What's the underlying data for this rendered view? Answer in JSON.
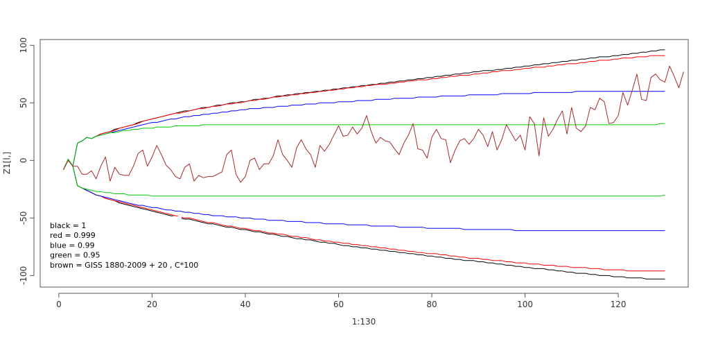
{
  "chart_data": {
    "type": "line",
    "title": "",
    "xlabel": "1:130",
    "ylabel": "Z1[l,]",
    "xlim": [
      -4,
      135
    ],
    "ylim": [
      -110,
      105
    ],
    "xticks": [
      0,
      20,
      40,
      60,
      80,
      100,
      120
    ],
    "yticks": [
      -100,
      -50,
      0,
      50,
      100
    ],
    "legend": {
      "placement": "bottom-left",
      "lines": [
        "black = 1",
        "red = 0.999",
        "blue = 0.99",
        "green = 0.95",
        "brown = GISS 1880-2009 + 20 , C*100"
      ]
    },
    "series": [
      {
        "color": "#000000",
        "role": "upper",
        "values": [
          -8,
          1,
          -5,
          15,
          17,
          20,
          19,
          21,
          23,
          24,
          25,
          27,
          28,
          29,
          30,
          31,
          33,
          34,
          35,
          36,
          37,
          38,
          39,
          40,
          41,
          42,
          43,
          43,
          44,
          45,
          46,
          46,
          47,
          48,
          48,
          49,
          50,
          50,
          51,
          51,
          52,
          53,
          53,
          54,
          54,
          55,
          56,
          56,
          57,
          57,
          58,
          58,
          59,
          59,
          60,
          60,
          61,
          61,
          62,
          62,
          63,
          63,
          64,
          64,
          65,
          65,
          66,
          66,
          67,
          67,
          68,
          68,
          69,
          69,
          70,
          70,
          71,
          71,
          72,
          72,
          73,
          73,
          74,
          74,
          75,
          75,
          76,
          76,
          77,
          77,
          78,
          78,
          78,
          79,
          79,
          80,
          80,
          81,
          81,
          82,
          82,
          83,
          83,
          84,
          84,
          85,
          85,
          86,
          86,
          87,
          87,
          88,
          88,
          89,
          89,
          90,
          90,
          90,
          91,
          91,
          92,
          92,
          93,
          93,
          94,
          94,
          95,
          95,
          96,
          96
        ]
      },
      {
        "color": "#000000",
        "role": "lower",
        "values": [
          -8,
          1,
          -5,
          -22,
          -24,
          -26,
          -28,
          -30,
          -31,
          -33,
          -34,
          -35,
          -37,
          -38,
          -39,
          -40,
          -41,
          -42,
          -43,
          -44,
          -45,
          -46,
          -47,
          -48,
          -49,
          -50,
          -51,
          -51,
          -52,
          -53,
          -54,
          -55,
          -55,
          -56,
          -57,
          -58,
          -58,
          -59,
          -60,
          -60,
          -61,
          -62,
          -62,
          -63,
          -64,
          -64,
          -65,
          -66,
          -66,
          -67,
          -68,
          -68,
          -69,
          -69,
          -70,
          -71,
          -71,
          -72,
          -72,
          -73,
          -74,
          -74,
          -75,
          -75,
          -76,
          -76,
          -77,
          -77,
          -78,
          -78,
          -79,
          -79,
          -80,
          -80,
          -81,
          -81,
          -82,
          -82,
          -83,
          -83,
          -84,
          -84,
          -85,
          -85,
          -86,
          -86,
          -87,
          -87,
          -87,
          -88,
          -88,
          -89,
          -89,
          -90,
          -90,
          -91,
          -91,
          -92,
          -92,
          -93,
          -93,
          -94,
          -94,
          -94,
          -95,
          -95,
          -96,
          -96,
          -97,
          -97,
          -98,
          -98,
          -98,
          -99,
          -99,
          -100,
          -100,
          -100,
          -101,
          -101,
          -101,
          -102,
          -102,
          -102,
          -102,
          -103,
          -103,
          -103,
          -103,
          -103
        ]
      },
      {
        "color": "#ff0000",
        "role": "upper",
        "values": [
          -8,
          1,
          -5,
          15,
          17,
          20,
          19,
          21,
          23,
          24,
          25,
          26,
          28,
          29,
          30,
          31,
          32,
          34,
          35,
          36,
          37,
          38,
          39,
          40,
          41,
          41,
          42,
          43,
          44,
          45,
          45,
          46,
          47,
          47,
          48,
          49,
          49,
          50,
          50,
          51,
          52,
          52,
          53,
          53,
          54,
          55,
          55,
          56,
          56,
          57,
          57,
          58,
          58,
          59,
          59,
          60,
          60,
          61,
          61,
          62,
          62,
          63,
          63,
          64,
          64,
          65,
          65,
          66,
          66,
          66,
          67,
          67,
          68,
          68,
          69,
          69,
          70,
          70,
          70,
          71,
          71,
          72,
          72,
          73,
          73,
          74,
          74,
          74,
          75,
          75,
          76,
          76,
          77,
          77,
          78,
          78,
          78,
          79,
          79,
          80,
          80,
          81,
          81,
          81,
          82,
          82,
          83,
          83,
          84,
          84,
          84,
          85,
          85,
          86,
          86,
          87,
          87,
          87,
          88,
          88,
          89,
          89,
          89,
          90,
          90,
          90,
          91,
          91,
          91,
          91
        ]
      },
      {
        "color": "#ff0000",
        "role": "lower",
        "values": [
          -8,
          1,
          -5,
          -22,
          -24,
          -26,
          -28,
          -30,
          -31,
          -33,
          -34,
          -35,
          -36,
          -37,
          -38,
          -39,
          -40,
          -41,
          -42,
          -43,
          -44,
          -45,
          -46,
          -47,
          -48,
          -49,
          -50,
          -50,
          -51,
          -52,
          -53,
          -54,
          -54,
          -55,
          -56,
          -57,
          -57,
          -58,
          -59,
          -59,
          -60,
          -61,
          -61,
          -62,
          -63,
          -63,
          -64,
          -64,
          -65,
          -66,
          -66,
          -67,
          -67,
          -68,
          -69,
          -69,
          -70,
          -70,
          -71,
          -71,
          -72,
          -72,
          -73,
          -73,
          -74,
          -74,
          -75,
          -75,
          -76,
          -76,
          -77,
          -77,
          -78,
          -78,
          -79,
          -79,
          -80,
          -80,
          -81,
          -81,
          -81,
          -82,
          -82,
          -83,
          -83,
          -84,
          -84,
          -85,
          -85,
          -85,
          -86,
          -86,
          -87,
          -87,
          -87,
          -88,
          -88,
          -89,
          -89,
          -89,
          -90,
          -90,
          -90,
          -91,
          -91,
          -91,
          -92,
          -92,
          -92,
          -93,
          -93,
          -93,
          -93,
          -94,
          -94,
          -94,
          -95,
          -95,
          -95,
          -95,
          -95,
          -96,
          -96,
          -96,
          -96,
          -96,
          -96,
          -96,
          -96,
          -96
        ]
      },
      {
        "color": "#0000ff",
        "role": "upper",
        "values": [
          -8,
          1,
          -5,
          15,
          17,
          20,
          19,
          21,
          22,
          23,
          24,
          25,
          26,
          27,
          28,
          29,
          30,
          31,
          32,
          33,
          33,
          34,
          35,
          36,
          36,
          37,
          38,
          38,
          39,
          39,
          40,
          40,
          41,
          41,
          42,
          42,
          43,
          43,
          44,
          44,
          45,
          45,
          45,
          46,
          46,
          46,
          47,
          47,
          47,
          48,
          48,
          48,
          49,
          49,
          49,
          50,
          50,
          50,
          50,
          51,
          51,
          51,
          51,
          52,
          52,
          52,
          52,
          53,
          53,
          53,
          53,
          54,
          54,
          54,
          54,
          54,
          55,
          55,
          55,
          55,
          55,
          56,
          56,
          56,
          56,
          56,
          56,
          57,
          57,
          57,
          57,
          57,
          57,
          57,
          58,
          58,
          58,
          58,
          58,
          58,
          58,
          59,
          59,
          59,
          59,
          59,
          59,
          59,
          59,
          59,
          60,
          60,
          60,
          60,
          60,
          60,
          60,
          60,
          60,
          60,
          60,
          60,
          60,
          60,
          60,
          60,
          60,
          60,
          60,
          60
        ]
      },
      {
        "color": "#0000ff",
        "role": "lower",
        "values": [
          -8,
          1,
          -5,
          -22,
          -24,
          -26,
          -28,
          -30,
          -31,
          -32,
          -33,
          -34,
          -35,
          -36,
          -37,
          -38,
          -39,
          -39,
          -40,
          -41,
          -41,
          -42,
          -43,
          -43,
          -44,
          -44,
          -45,
          -45,
          -46,
          -46,
          -47,
          -47,
          -48,
          -48,
          -48,
          -49,
          -49,
          -49,
          -50,
          -50,
          -50,
          -51,
          -51,
          -51,
          -52,
          -52,
          -52,
          -52,
          -53,
          -53,
          -53,
          -53,
          -54,
          -54,
          -54,
          -54,
          -55,
          -55,
          -55,
          -55,
          -55,
          -56,
          -56,
          -56,
          -56,
          -56,
          -57,
          -57,
          -57,
          -57,
          -57,
          -57,
          -58,
          -58,
          -58,
          -58,
          -58,
          -58,
          -59,
          -59,
          -59,
          -59,
          -59,
          -59,
          -59,
          -59,
          -60,
          -60,
          -60,
          -60,
          -60,
          -60,
          -60,
          -60,
          -60,
          -60,
          -60,
          -61,
          -61,
          -61,
          -61,
          -61,
          -61,
          -61,
          -61,
          -61,
          -61,
          -61,
          -61,
          -61,
          -61,
          -61,
          -61,
          -61,
          -61,
          -61,
          -61,
          -61,
          -61,
          -61,
          -61,
          -61,
          -61,
          -61,
          -61,
          -61,
          -61,
          -61,
          -61,
          -61
        ]
      },
      {
        "color": "#00cc00",
        "role": "upper",
        "values": [
          -8,
          1,
          -5,
          15,
          17,
          20,
          19,
          21,
          22,
          23,
          24,
          24,
          25,
          26,
          26,
          27,
          27,
          28,
          28,
          28,
          29,
          29,
          29,
          29,
          30,
          30,
          30,
          30,
          30,
          30,
          31,
          31,
          31,
          31,
          31,
          31,
          31,
          31,
          31,
          31,
          31,
          31,
          31,
          31,
          31,
          31,
          31,
          31,
          31,
          31,
          31,
          31,
          31,
          31,
          31,
          31,
          31,
          31,
          31,
          31,
          31,
          31,
          31,
          31,
          31,
          31,
          31,
          31,
          31,
          31,
          31,
          31,
          31,
          31,
          31,
          31,
          31,
          31,
          31,
          31,
          31,
          31,
          31,
          31,
          31,
          31,
          31,
          31,
          31,
          31,
          31,
          31,
          31,
          31,
          31,
          31,
          31,
          31,
          31,
          31,
          31,
          31,
          31,
          31,
          31,
          31,
          31,
          31,
          31,
          31,
          31,
          31,
          31,
          31,
          31,
          31,
          31,
          31,
          31,
          31,
          31,
          31,
          31,
          31,
          31,
          31,
          31,
          31,
          32,
          32
        ]
      },
      {
        "color": "#00cc00",
        "role": "lower",
        "values": [
          -8,
          1,
          -5,
          -22,
          -24,
          -25,
          -26,
          -27,
          -27,
          -28,
          -28,
          -29,
          -29,
          -29,
          -30,
          -30,
          -30,
          -30,
          -30,
          -31,
          -31,
          -31,
          -31,
          -31,
          -31,
          -31,
          -31,
          -31,
          -31,
          -31,
          -31,
          -31,
          -31,
          -31,
          -31,
          -31,
          -31,
          -31,
          -31,
          -31,
          -31,
          -31,
          -31,
          -31,
          -31,
          -31,
          -31,
          -31,
          -31,
          -31,
          -31,
          -31,
          -31,
          -31,
          -31,
          -31,
          -31,
          -31,
          -31,
          -31,
          -31,
          -31,
          -31,
          -31,
          -31,
          -31,
          -31,
          -31,
          -31,
          -31,
          -31,
          -31,
          -31,
          -31,
          -31,
          -31,
          -31,
          -31,
          -31,
          -31,
          -31,
          -31,
          -31,
          -31,
          -31,
          -31,
          -31,
          -31,
          -31,
          -31,
          -31,
          -31,
          -31,
          -31,
          -31,
          -31,
          -31,
          -31,
          -31,
          -31,
          -31,
          -31,
          -31,
          -31,
          -31,
          -31,
          -31,
          -31,
          -31,
          -31,
          -31,
          -31,
          -31,
          -31,
          -31,
          -31,
          -31,
          -31,
          -31,
          -31,
          -31,
          -31,
          -31,
          -31,
          -31,
          -31,
          -31,
          -31,
          -31,
          -30
        ]
      },
      {
        "color": "#a52a2a",
        "role": "data",
        "values": [
          -8,
          0,
          -5,
          -5,
          -12,
          -12,
          -9,
          -16,
          -5,
          3,
          -18,
          -6,
          -12,
          -13,
          -13,
          -5,
          6,
          9,
          -5,
          3,
          13,
          5,
          -4,
          -8,
          -14,
          -16,
          -6,
          -3,
          -18,
          -13,
          -15,
          -14,
          -14,
          -12,
          -10,
          5,
          9,
          -12,
          -19,
          -14,
          0,
          2,
          -8,
          -3,
          -3,
          4,
          18,
          5,
          0,
          -6,
          11,
          18,
          10,
          5,
          -6,
          13,
          8,
          14,
          22,
          30,
          21,
          22,
          29,
          23,
          28,
          39,
          25,
          15,
          20,
          17,
          16,
          10,
          5,
          15,
          22,
          32,
          10,
          9,
          2,
          20,
          27,
          19,
          18,
          -2,
          9,
          17,
          19,
          14,
          19,
          27,
          22,
          12,
          25,
          9,
          18,
          31,
          24,
          17,
          22,
          9,
          38,
          32,
          4,
          37,
          21,
          27,
          36,
          43,
          23,
          46,
          28,
          25,
          30,
          46,
          44,
          54,
          51,
          32,
          33,
          39,
          59,
          48,
          61,
          75,
          53,
          52,
          72,
          75,
          70,
          68,
          82,
          73,
          63,
          77
        ]
      }
    ]
  }
}
